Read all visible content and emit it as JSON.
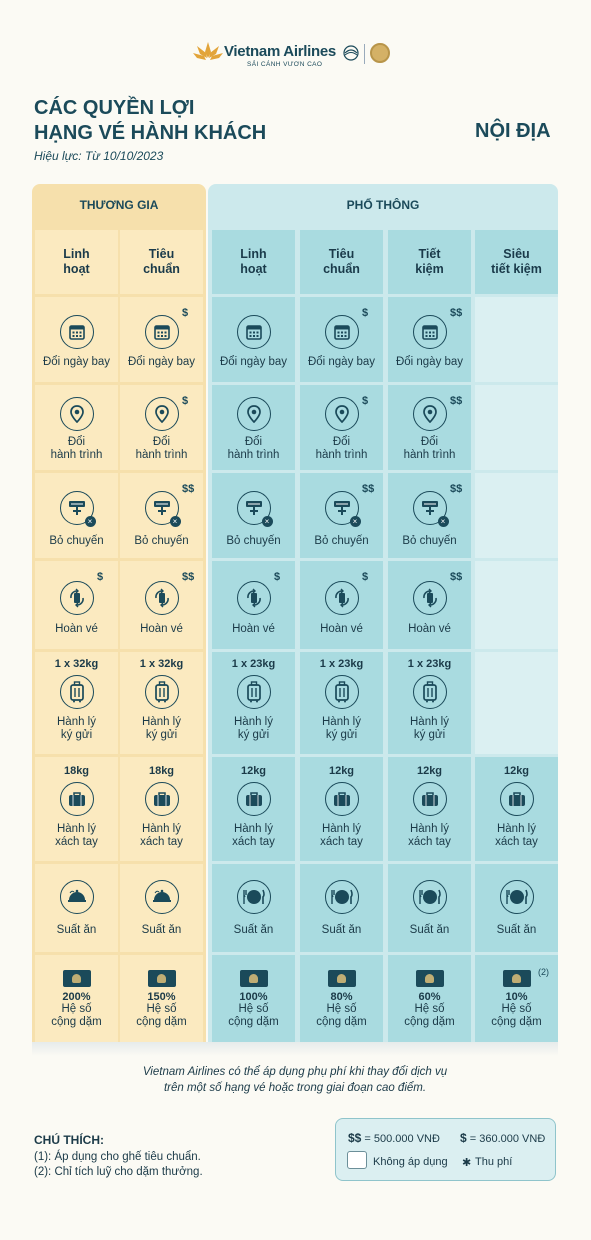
{
  "logo": {
    "brand": "Vietnam Airlines",
    "slogan": "SẢI CÁNH VƯƠN CAO",
    "icon": "lotus-icon"
  },
  "title": {
    "line1": "CÁC QUYỀN LỢI",
    "line2": "HẠNG VÉ HÀNH KHÁCH",
    "validity": "Hiệu lực: Từ 10/10/2023",
    "region": "NỘI ĐỊA"
  },
  "groups": {
    "business": "THƯƠNG GIA",
    "economy": "PHỔ THÔNG"
  },
  "columns": [
    {
      "l1": "Linh",
      "l2": "hoạt"
    },
    {
      "l1": "Tiêu",
      "l2": "chuẩn"
    },
    {
      "l1": "Linh",
      "l2": "hoạt"
    },
    {
      "l1": "Tiêu",
      "l2": "chuẩn"
    },
    {
      "l1": "Tiết",
      "l2": "kiệm"
    },
    {
      "l1": "Siêu",
      "l2": "tiết kiệm"
    }
  ],
  "rows": {
    "change_date": {
      "label": "Đổi ngày bay",
      "fees": [
        "",
        "$",
        "",
        "$",
        "$$",
        ""
      ],
      "icon": "calendar-icon"
    },
    "change_route": {
      "label1": "Đổi",
      "label2": "hành trình",
      "fees": [
        "",
        "$",
        "",
        "$",
        "$$",
        ""
      ],
      "icon": "location-pin-icon"
    },
    "no_show": {
      "label": "Bỏ chuyến",
      "fees": [
        "",
        "$$",
        "",
        "$$",
        "$$",
        ""
      ],
      "icon": "missed-flight-icon"
    },
    "refund": {
      "label": "Hoàn vé",
      "fees": [
        "$",
        "$$",
        "$",
        "$",
        "$$",
        ""
      ],
      "icon": "refund-icon"
    },
    "checked_bag": {
      "label1": "Hành lý",
      "label2": "ký gửi",
      "weights": [
        "1 x 32kg",
        "1 x 32kg",
        "1 x 23kg",
        "1 x 23kg",
        "1 x 23kg",
        ""
      ],
      "icon": "luggage-icon"
    },
    "carry_on": {
      "label1": "Hành lý",
      "label2": "xách tay",
      "weights": [
        "18kg",
        "18kg",
        "12kg",
        "12kg",
        "12kg",
        "12kg"
      ],
      "icon": "handbag-icon"
    },
    "meal": {
      "label": "Suất ăn",
      "icon": "meal-icon"
    },
    "miles": {
      "label1": "Hệ số",
      "label2": "cộng dặm",
      "percents": [
        "200%",
        "150%",
        "100%",
        "80%",
        "60%",
        "10%"
      ],
      "sup": "(2)",
      "icon": "lotusmiles-card-icon"
    }
  },
  "note": {
    "line1": "Vietnam Airlines có thể áp dụng phụ phí khi thay đổi dịch vụ",
    "line2": "trên một số hạng vé hoặc trong giai đoạn cao điểm."
  },
  "legend": {
    "title": "CHÚ THÍCH:",
    "n1": "(1): Áp dụng cho ghế tiêu chuẩn.",
    "n2": "(2): Chỉ tích luỹ cho dặm thưởng.",
    "dd": "$$",
    "dd_val": "= 500.000 VNĐ",
    "d": "$",
    "d_val": "= 360.000 VNĐ",
    "na": "Không áp dụng",
    "fee_mark": "✱",
    "fee": "Thu phí"
  },
  "colors": {
    "gold": "#f6e0ac",
    "teal": "#a9dbe0",
    "navy": "#1b4a5a"
  }
}
